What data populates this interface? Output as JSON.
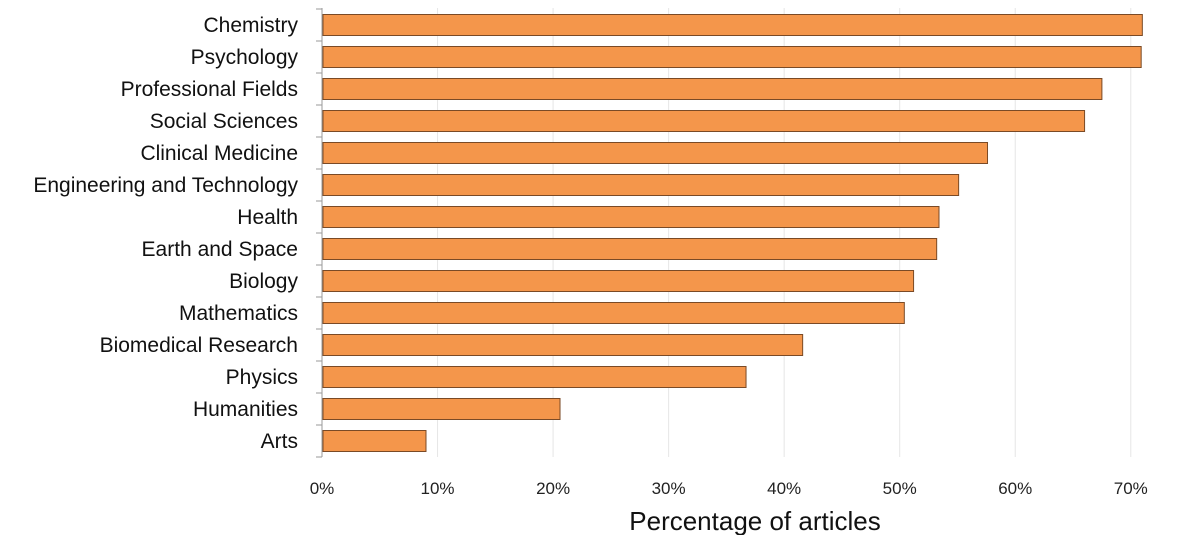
{
  "chart_data": {
    "type": "bar",
    "orientation": "horizontal",
    "categories": [
      "Chemistry",
      "Psychology",
      "Professional Fields",
      "Social Sciences",
      "Clinical Medicine",
      "Engineering and Technology",
      "Health",
      "Earth and Space",
      "Biology",
      "Mathematics",
      "Biomedical Research",
      "Physics",
      "Humanities",
      "Arts"
    ],
    "values": [
      71,
      70.9,
      67.5,
      66,
      57.6,
      55.1,
      53.4,
      53.2,
      51.2,
      50.4,
      41.6,
      36.7,
      20.6,
      9
    ],
    "title": "",
    "xlabel": "Percentage of articles",
    "ylabel": "",
    "xlim": [
      0,
      74
    ],
    "xticks": [
      0,
      10,
      20,
      30,
      40,
      50,
      60,
      70
    ],
    "xtick_labels": [
      "0%",
      "10%",
      "20%",
      "30%",
      "40%",
      "50%",
      "60%",
      "70%"
    ],
    "grid": "vertical",
    "legend": "none",
    "bar_color": "#f4964b",
    "bar_edge_color": "#7a4a26"
  }
}
